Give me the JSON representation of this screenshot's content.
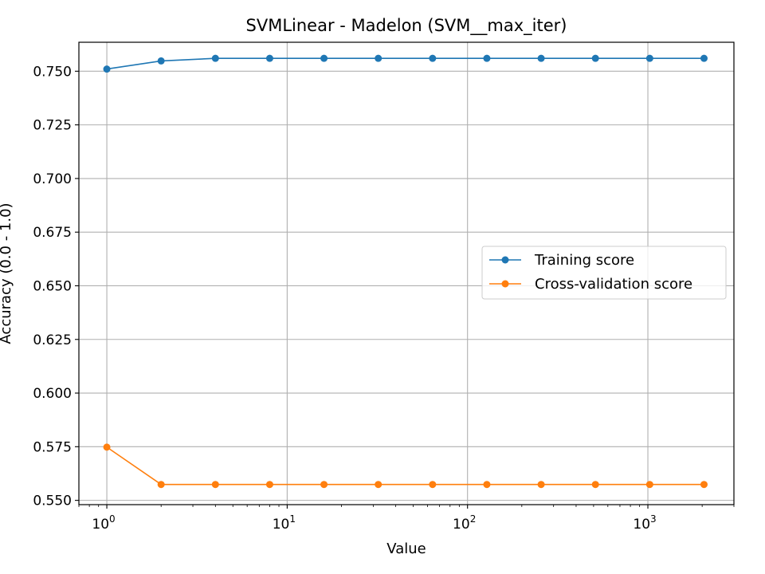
{
  "chart_data": {
    "type": "line",
    "title": "SVMLinear - Madelon (SVM__max_iter)",
    "xlabel": "Value",
    "ylabel": "Accuracy (0.0 - 1.0)",
    "xscale": "log",
    "xlim": [
      0.7,
      3000
    ],
    "ylim": [
      0.548,
      0.7635
    ],
    "grid": true,
    "legend_position": "center-right",
    "x": [
      1,
      2,
      4,
      8,
      16,
      32,
      64,
      128,
      256,
      512,
      1024,
      2048
    ],
    "x_ticks": [
      {
        "value": 1,
        "base": "10",
        "exp": "0"
      },
      {
        "value": 10,
        "base": "10",
        "exp": "1"
      },
      {
        "value": 100,
        "base": "10",
        "exp": "2"
      },
      {
        "value": 1000,
        "base": "10",
        "exp": "3"
      }
    ],
    "y_ticks": [
      {
        "value": 0.55,
        "label": "0.550"
      },
      {
        "value": 0.575,
        "label": "0.575"
      },
      {
        "value": 0.6,
        "label": "0.600"
      },
      {
        "value": 0.625,
        "label": "0.625"
      },
      {
        "value": 0.65,
        "label": "0.650"
      },
      {
        "value": 0.675,
        "label": "0.675"
      },
      {
        "value": 0.7,
        "label": "0.700"
      },
      {
        "value": 0.725,
        "label": "0.725"
      },
      {
        "value": 0.75,
        "label": "0.750"
      }
    ],
    "series": [
      {
        "name": "Training score",
        "color": "#1f77b4",
        "values": [
          0.751,
          0.7548,
          0.756,
          0.756,
          0.756,
          0.756,
          0.756,
          0.756,
          0.756,
          0.756,
          0.756,
          0.756
        ]
      },
      {
        "name": "Cross-validation score",
        "color": "#ff7f0e",
        "values": [
          0.5748,
          0.5574,
          0.5574,
          0.5574,
          0.5574,
          0.5574,
          0.5574,
          0.5574,
          0.5574,
          0.5574,
          0.5574,
          0.5574
        ]
      }
    ]
  }
}
